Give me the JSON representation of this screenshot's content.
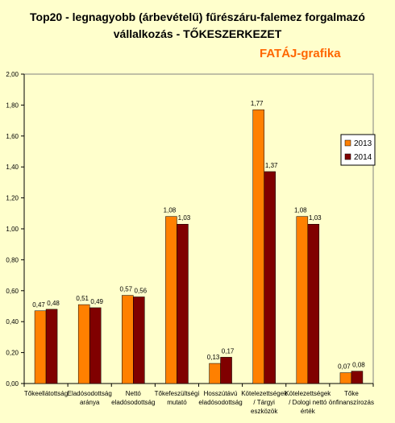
{
  "title_lines": [
    "Top20 - legnagyobb (árbevételű) fűrészáru-falemez forgalmazó",
    "vállalkozás - TŐKESZERKEZET"
  ],
  "brand": "FATÁJ-grafika",
  "colors": {
    "background": "#ffffcc",
    "plot_background": "#ffffcc",
    "series_2013": "#ff8000",
    "series_2014": "#800000",
    "brand": "#ff6600"
  },
  "chart_data": {
    "type": "bar",
    "categories": [
      [
        "Tőkeellátottság"
      ],
      [
        "Eladósodottság",
        "aránya"
      ],
      [
        "Nettó",
        "eladósodottság"
      ],
      [
        "Tőkefeszültségi",
        "mutató"
      ],
      [
        "Hosszútávú",
        "eladósodottság"
      ],
      [
        "Kötelezettségek",
        "/ Tárgyi",
        "eszközök"
      ],
      [
        "Kötelezettségek",
        "/ Dologi nettó",
        "érték"
      ],
      [
        "Tőke",
        "önfinanszírozás"
      ]
    ],
    "series": [
      {
        "name": "2013",
        "values": [
          0.47,
          0.51,
          0.57,
          1.08,
          0.13,
          1.77,
          1.08,
          0.07
        ],
        "labels": [
          "0,47",
          "0,51",
          "0,57",
          "1,08",
          "0,13",
          "1,77",
          "1,08",
          "0,07"
        ]
      },
      {
        "name": "2014",
        "values": [
          0.48,
          0.49,
          0.56,
          1.03,
          0.17,
          1.37,
          1.03,
          0.08
        ],
        "labels": [
          "0,48",
          "0,49",
          "0,56",
          "1,03",
          "0,17",
          "1,37",
          "1,03",
          "0,08"
        ]
      }
    ],
    "yticks": [
      "0,00",
      "0,20",
      "0,40",
      "0,60",
      "0,80",
      "1,00",
      "1,20",
      "1,40",
      "1,60",
      "1,80",
      "2,00"
    ],
    "ylim": [
      0,
      2.0
    ],
    "ytick_step": 0.2,
    "grid": false,
    "legend_position": "right"
  }
}
